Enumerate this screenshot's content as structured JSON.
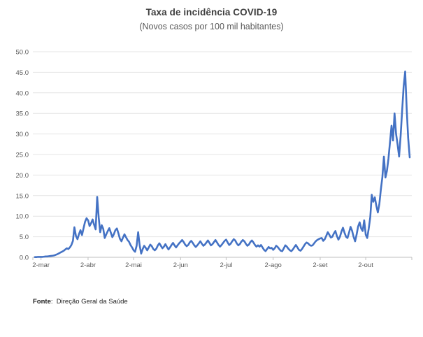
{
  "chart_data": {
    "type": "line",
    "title": "Taxa de incidência COVID-19",
    "subtitle": "(Novos casos por 100 mil habitantes)",
    "xlabel": "",
    "ylabel": "",
    "ylim": [
      0,
      50
    ],
    "grid": "horizontal",
    "legend": "none",
    "x_unit": "day",
    "yticks": [
      {
        "v": 0,
        "label": "0.0"
      },
      {
        "v": 5,
        "label": "5.0"
      },
      {
        "v": 10,
        "label": "10.0"
      },
      {
        "v": 15,
        "label": "15.0"
      },
      {
        "v": 20,
        "label": "20.0"
      },
      {
        "v": 25,
        "label": "25.0"
      },
      {
        "v": 30,
        "label": "30.0"
      },
      {
        "v": 35,
        "label": "35.0"
      },
      {
        "v": 40,
        "label": "40.0"
      },
      {
        "v": 45,
        "label": "45.0"
      },
      {
        "v": 50,
        "label": "50.0"
      }
    ],
    "xticks": [
      {
        "index": 4,
        "label": "2-mar"
      },
      {
        "index": 35,
        "label": "2-abr"
      },
      {
        "index": 65,
        "label": "2-mai"
      },
      {
        "index": 96,
        "label": "2-jun"
      },
      {
        "index": 126,
        "label": "2-jul"
      },
      {
        "index": 157,
        "label": "2-ago"
      },
      {
        "index": 188,
        "label": "2-set"
      },
      {
        "index": 218,
        "label": "2-out"
      }
    ],
    "values": [
      0.05,
      0.05,
      0.1,
      0.1,
      0.1,
      0.1,
      0.15,
      0.2,
      0.2,
      0.25,
      0.3,
      0.35,
      0.4,
      0.5,
      0.65,
      0.8,
      1.0,
      1.2,
      1.4,
      1.6,
      1.9,
      2.2,
      2.0,
      2.4,
      3.0,
      4.0,
      7.3,
      5.2,
      4.4,
      5.6,
      6.6,
      5.4,
      7.0,
      8.6,
      9.5,
      9.0,
      7.6,
      8.3,
      9.2,
      7.9,
      6.8,
      14.7,
      9.8,
      6.1,
      7.8,
      6.9,
      4.7,
      5.6,
      6.4,
      7.1,
      6.0,
      4.9,
      5.6,
      6.6,
      7.0,
      5.8,
      4.5,
      3.9,
      4.8,
      5.6,
      4.9,
      4.2,
      3.8,
      3.0,
      2.4,
      1.7,
      1.35,
      2.8,
      6.1,
      3.0,
      0.9,
      2.0,
      2.8,
      2.3,
      1.7,
      2.4,
      3.1,
      2.7,
      2.0,
      1.7,
      2.1,
      2.9,
      3.4,
      2.8,
      2.2,
      2.6,
      3.2,
      2.5,
      1.9,
      2.4,
      3.0,
      3.5,
      2.9,
      2.4,
      2.9,
      3.4,
      3.8,
      4.2,
      3.7,
      3.1,
      2.7,
      3.0,
      3.6,
      4.0,
      3.5,
      2.9,
      2.5,
      2.9,
      3.4,
      3.9,
      3.3,
      2.8,
      3.1,
      3.6,
      4.1,
      3.5,
      2.9,
      3.2,
      3.7,
      4.2,
      3.6,
      3.0,
      2.6,
      3.0,
      3.5,
      4.0,
      4.3,
      3.6,
      3.0,
      3.3,
      3.9,
      4.4,
      4.1,
      3.4,
      2.9,
      3.2,
      3.8,
      4.2,
      3.9,
      3.3,
      2.8,
      3.1,
      3.7,
      4.1,
      3.6,
      3.0,
      2.6,
      2.9,
      2.6,
      3.0,
      2.4,
      1.8,
      1.5,
      2.0,
      2.5,
      2.2,
      2.3,
      1.8,
      2.2,
      2.8,
      2.5,
      2.0,
      1.6,
      1.5,
      2.2,
      2.9,
      2.6,
      2.1,
      1.7,
      1.5,
      1.9,
      2.5,
      3.0,
      2.4,
      1.8,
      1.6,
      2.0,
      2.6,
      3.2,
      3.6,
      3.4,
      3.0,
      2.8,
      2.9,
      3.4,
      3.9,
      4.2,
      4.4,
      4.6,
      4.7,
      4.0,
      4.4,
      5.2,
      6.1,
      5.5,
      4.8,
      5.0,
      5.8,
      6.4,
      5.2,
      4.3,
      5.0,
      6.2,
      7.2,
      6.0,
      5.0,
      4.7,
      6.0,
      7.4,
      6.5,
      5.0,
      3.9,
      5.5,
      7.5,
      8.5,
      7.0,
      6.4,
      9.0,
      5.5,
      4.7,
      7.0,
      9.8,
      15.2,
      13.5,
      14.6,
      12.5,
      10.9,
      13.0,
      16.6,
      19.5,
      24.5,
      19.4,
      21.0,
      24.0,
      28.0,
      32.0,
      28.4,
      35.0,
      30.0,
      27.5,
      24.5,
      29.5,
      35.5,
      41.5,
      45.2,
      36.0,
      29.0,
      24.3
    ]
  },
  "footer": {
    "source_label": "Fonte",
    "source_text": ":  Direção Geral da Saúde"
  },
  "colors": {
    "line": "#4472C4",
    "grid": "#E4E4E4",
    "axis": "#BFBFBF",
    "tick_text": "#595959",
    "title_text": "#3F3F3F",
    "subtitle_text": "#595959",
    "source_text": "#1F1F1F"
  }
}
